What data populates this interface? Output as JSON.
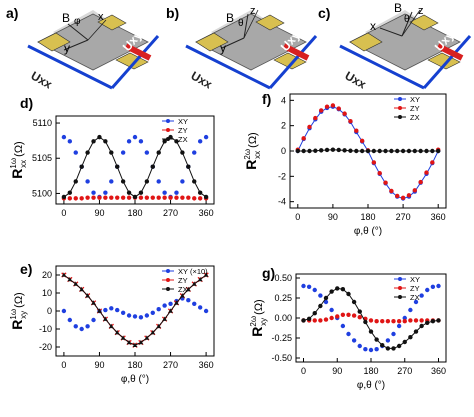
{
  "device_panels": [
    {
      "label": "a)",
      "ulong": "Uxx",
      "utrans": "Uxy",
      "axes": [
        "B",
        "φ",
        "x",
        "y"
      ]
    },
    {
      "label": "b)",
      "ulong": "Uxx",
      "utrans": "Uxy",
      "axes": [
        "B",
        "θ",
        "z",
        "y"
      ]
    },
    {
      "label": "c)",
      "ulong": "Uxx",
      "utrans": "Uxy",
      "axes": [
        "B",
        "θ",
        "z",
        "x"
      ]
    }
  ],
  "colors": {
    "XY": "#1f3fe0",
    "ZY": "#e01515",
    "ZX": "#111111",
    "current_arrow": "#d82020",
    "voltage_arrow": "#1540d0",
    "pad": "#d8c050",
    "device": "#a8a8a8"
  },
  "chart_data": [
    {
      "type": "scatter",
      "panel": "d)",
      "ylabel": "R",
      "ylabel_sup": "1ω",
      "ylabel_sub": "xx",
      "ylabel_unit": "(Ω)",
      "xlabel": "",
      "xlim": [
        -20,
        380
      ],
      "ylim": [
        5098.5,
        5111
      ],
      "xticks": [
        "0",
        "90",
        "180",
        "270",
        "360"
      ],
      "yticks": [
        "5100",
        "5105",
        "5110"
      ],
      "legend": [
        "XY",
        "ZY",
        "ZX"
      ],
      "legend_position": "top-right",
      "grid": false,
      "x": [
        0,
        15,
        30,
        45,
        60,
        75,
        90,
        105,
        120,
        135,
        150,
        165,
        180,
        195,
        210,
        225,
        240,
        255,
        270,
        285,
        300,
        315,
        330,
        345,
        360
      ],
      "series": [
        {
          "name": "XY",
          "marker": "circle",
          "line": false,
          "values": [
            5108,
            5107.4,
            5105.8,
            5103.8,
            5101.7,
            5100.1,
            5099.5,
            5100.1,
            5101.7,
            5103.8,
            5105.8,
            5107.4,
            5108,
            5107.4,
            5105.8,
            5103.8,
            5101.7,
            5100.1,
            5099.5,
            5100.1,
            5101.7,
            5103.8,
            5105.8,
            5107.4,
            5108
          ]
        },
        {
          "name": "ZY",
          "marker": "circle",
          "line": false,
          "values": [
            5099.3,
            5099.3,
            5099.3,
            5099.3,
            5099.4,
            5099.4,
            5099.4,
            5099.4,
            5099.4,
            5099.4,
            5099.4,
            5099.4,
            5099.4,
            5099.4,
            5099.4,
            5099.4,
            5099.4,
            5099.4,
            5099.4,
            5099.4,
            5099.4,
            5099.4,
            5099.3,
            5099.3,
            5099.3
          ]
        },
        {
          "name": "ZX",
          "marker": "circle",
          "line": true,
          "values": [
            5099.5,
            5100.1,
            5101.7,
            5103.8,
            5105.8,
            5107.4,
            5108,
            5107.4,
            5105.8,
            5103.8,
            5101.7,
            5100.1,
            5099.5,
            5100.1,
            5101.7,
            5103.8,
            5105.8,
            5107.4,
            5108,
            5107.4,
            5105.8,
            5103.8,
            5101.7,
            5100.1,
            5099.5
          ]
        }
      ]
    },
    {
      "type": "scatter",
      "panel": "f)",
      "ylabel": "R",
      "ylabel_sup": "2ω",
      "ylabel_sub": "xx",
      "ylabel_unit": "(Ω)",
      "xlabel": "φ,θ (°)",
      "xlim": [
        -20,
        380
      ],
      "ylim": [
        -4.5,
        4.5
      ],
      "xticks": [
        "0",
        "90",
        "180",
        "270",
        "360"
      ],
      "yticks": [
        "-4",
        "-2",
        "0",
        "2",
        "4"
      ],
      "legend": [
        "XY",
        "ZY",
        "ZX"
      ],
      "legend_position": "top-right",
      "grid": false,
      "x": [
        0,
        15,
        30,
        45,
        60,
        75,
        90,
        105,
        120,
        135,
        150,
        165,
        180,
        195,
        210,
        225,
        240,
        255,
        270,
        285,
        300,
        315,
        330,
        345,
        360
      ],
      "series": [
        {
          "name": "XY",
          "marker": "circle",
          "line": true,
          "values": [
            0,
            0.95,
            1.8,
            2.5,
            3.1,
            3.4,
            3.5,
            3.3,
            2.9,
            2.3,
            1.5,
            0.75,
            0,
            -0.95,
            -1.8,
            -2.55,
            -3.2,
            -3.6,
            -3.75,
            -3.6,
            -3.2,
            -2.5,
            -1.8,
            -0.95,
            0
          ]
        },
        {
          "name": "ZY",
          "marker": "circle",
          "line": false,
          "values": [
            0.1,
            1.0,
            1.9,
            2.6,
            3.2,
            3.5,
            3.6,
            3.35,
            2.95,
            2.35,
            1.6,
            0.8,
            0.05,
            -0.9,
            -1.75,
            -2.5,
            -3.15,
            -3.55,
            -3.7,
            -3.5,
            -3.1,
            -2.45,
            -1.7,
            -0.9,
            0.1
          ]
        },
        {
          "name": "ZX",
          "marker": "circle",
          "line": true,
          "values": [
            0,
            0,
            0,
            0.02,
            0.05,
            0.08,
            0.1,
            0.08,
            0.05,
            0.02,
            0,
            0,
            0,
            0,
            0,
            0,
            0,
            0,
            0,
            0,
            0,
            0,
            0,
            0,
            0
          ]
        }
      ]
    },
    {
      "type": "scatter",
      "panel": "e)",
      "ylabel": "R",
      "ylabel_sup": "1ω",
      "ylabel_sub": "xy",
      "ylabel_unit": "(Ω)",
      "xlabel": "φ,θ (°)",
      "xlim": [
        -20,
        380
      ],
      "ylim": [
        -25,
        25
      ],
      "xticks": [
        "0",
        "90",
        "180",
        "270",
        "360"
      ],
      "yticks": [
        "-20",
        "-10",
        "0",
        "10",
        "20"
      ],
      "legend": [
        "XY (×10)",
        "ZY",
        "ZX"
      ],
      "legend_position": "top-right",
      "grid": false,
      "x": [
        0,
        15,
        30,
        45,
        60,
        75,
        90,
        105,
        120,
        135,
        150,
        165,
        180,
        195,
        210,
        225,
        240,
        255,
        270,
        285,
        300,
        315,
        330,
        345,
        360
      ],
      "series": [
        {
          "name": "XY (×10)",
          "marker": "circle",
          "line": false,
          "values": [
            0,
            -5,
            -8.5,
            -10,
            -8.5,
            -5,
            0,
            0.5,
            1.5,
            0.5,
            -1,
            -2.5,
            -3,
            -3.5,
            -2.5,
            -1,
            1,
            3,
            4,
            5.5,
            7,
            6,
            4,
            2,
            0
          ]
        },
        {
          "name": "ZY",
          "marker": "x",
          "line": true,
          "values": [
            20,
            17.5,
            15,
            12,
            8.5,
            4.5,
            0,
            -4.5,
            -8.5,
            -12,
            -15,
            -17.5,
            -19,
            -17.5,
            -15,
            -12,
            -8.5,
            -4.5,
            0,
            4.5,
            8.5,
            12,
            15,
            17.5,
            20
          ]
        },
        {
          "name": "ZX",
          "marker": "triangle",
          "line": true,
          "values": [
            20,
            17.5,
            15,
            12,
            8.5,
            4.5,
            0,
            -4.5,
            -8.5,
            -12,
            -15,
            -17.5,
            -19,
            -17.5,
            -15,
            -12,
            -8.5,
            -4.5,
            0,
            4.5,
            8.5,
            12,
            15,
            17.5,
            20
          ]
        }
      ]
    },
    {
      "type": "scatter",
      "panel": "g)",
      "ylabel": "R",
      "ylabel_sup": "2ω",
      "ylabel_sub": "xy",
      "ylabel_unit": "(Ω)",
      "xlabel": "φ,θ (°)",
      "xlim": [
        -20,
        380
      ],
      "ylim": [
        -0.55,
        0.55
      ],
      "xticks": [
        "0",
        "90",
        "180",
        "270",
        "360"
      ],
      "yticks": [
        "-0.50",
        "-0.25",
        "0.00",
        "0.25",
        "0.50"
      ],
      "legend": [
        "XY",
        "ZY",
        "ZX"
      ],
      "legend_position": "top-right",
      "grid": false,
      "x": [
        0,
        15,
        30,
        45,
        60,
        75,
        90,
        105,
        120,
        135,
        150,
        165,
        180,
        195,
        210,
        225,
        240,
        255,
        270,
        285,
        300,
        315,
        330,
        345,
        360
      ],
      "series": [
        {
          "name": "XY",
          "marker": "circle",
          "line": false,
          "values": [
            0.4,
            0.39,
            0.35,
            0.28,
            0.2,
            0.1,
            0,
            -0.1,
            -0.2,
            -0.28,
            -0.35,
            -0.39,
            -0.4,
            -0.39,
            -0.35,
            -0.28,
            -0.2,
            -0.1,
            0,
            0.1,
            0.2,
            0.28,
            0.35,
            0.39,
            0.4
          ]
        },
        {
          "name": "ZY",
          "marker": "circle",
          "line": false,
          "values": [
            -0.03,
            -0.03,
            -0.03,
            -0.03,
            -0.02,
            0,
            0.02,
            0.04,
            0.04,
            0.03,
            0.01,
            -0.01,
            -0.03,
            -0.04,
            -0.04,
            -0.04,
            -0.04,
            -0.04,
            -0.04,
            -0.03,
            -0.03,
            -0.03,
            -0.03,
            -0.03,
            -0.03
          ]
        },
        {
          "name": "ZX",
          "marker": "circle",
          "line": true,
          "values": [
            -0.03,
            -0.01,
            0.06,
            0.15,
            0.25,
            0.33,
            0.37,
            0.36,
            0.3,
            0.2,
            0.08,
            -0.05,
            -0.17,
            -0.27,
            -0.34,
            -0.38,
            -0.38,
            -0.35,
            -0.3,
            -0.24,
            -0.17,
            -0.1,
            -0.06,
            -0.04,
            -0.03
          ]
        }
      ]
    }
  ]
}
